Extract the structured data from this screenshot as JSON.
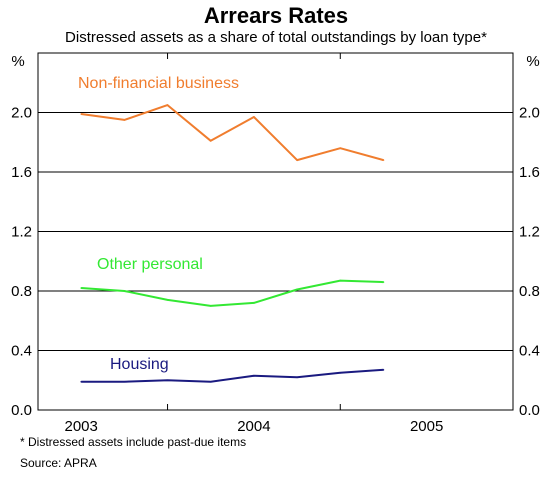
{
  "chart_data": {
    "type": "line",
    "title": "Arrears Rates",
    "subtitle": "Distressed assets as a share of total outstandings by loan type*",
    "ylabel_left": "%",
    "ylabel_right": "%",
    "ylim": [
      0,
      2.4
    ],
    "yticks": [
      0.0,
      0.4,
      0.8,
      1.2,
      1.6,
      2.0
    ],
    "ytick_labels": [
      "0.0",
      "0.4",
      "0.8",
      "1.2",
      "1.6",
      "2.0"
    ],
    "x_major_ticks": [
      2003,
      2004,
      2005
    ],
    "x_tick_labels": [
      "2003",
      "2004",
      "2005"
    ],
    "xlim": [
      2002.75,
      2005.5
    ],
    "grid": "horizontal",
    "series": [
      {
        "name": "Non-financial business",
        "color": "#f07d2e",
        "x": [
          2003.0,
          2003.25,
          2003.5,
          2003.75,
          2004.0,
          2004.25,
          2004.5,
          2004.75
        ],
        "values": [
          1.99,
          1.95,
          2.05,
          1.81,
          1.97,
          1.68,
          1.76,
          1.68
        ]
      },
      {
        "name": "Other personal",
        "color": "#33e833",
        "x": [
          2003.0,
          2003.25,
          2003.5,
          2003.75,
          2004.0,
          2004.25,
          2004.5,
          2004.75
        ],
        "values": [
          0.82,
          0.8,
          0.74,
          0.7,
          0.72,
          0.81,
          0.87,
          0.86
        ]
      },
      {
        "name": "Housing",
        "color": "#1a1a80",
        "x": [
          2003.0,
          2003.25,
          2003.5,
          2003.75,
          2004.0,
          2004.25,
          2004.5,
          2004.75
        ],
        "values": [
          0.19,
          0.19,
          0.2,
          0.19,
          0.23,
          0.22,
          0.25,
          0.27
        ]
      }
    ],
    "notes": [
      "*   Distressed assets include past-due items",
      "Source: APRA"
    ]
  }
}
